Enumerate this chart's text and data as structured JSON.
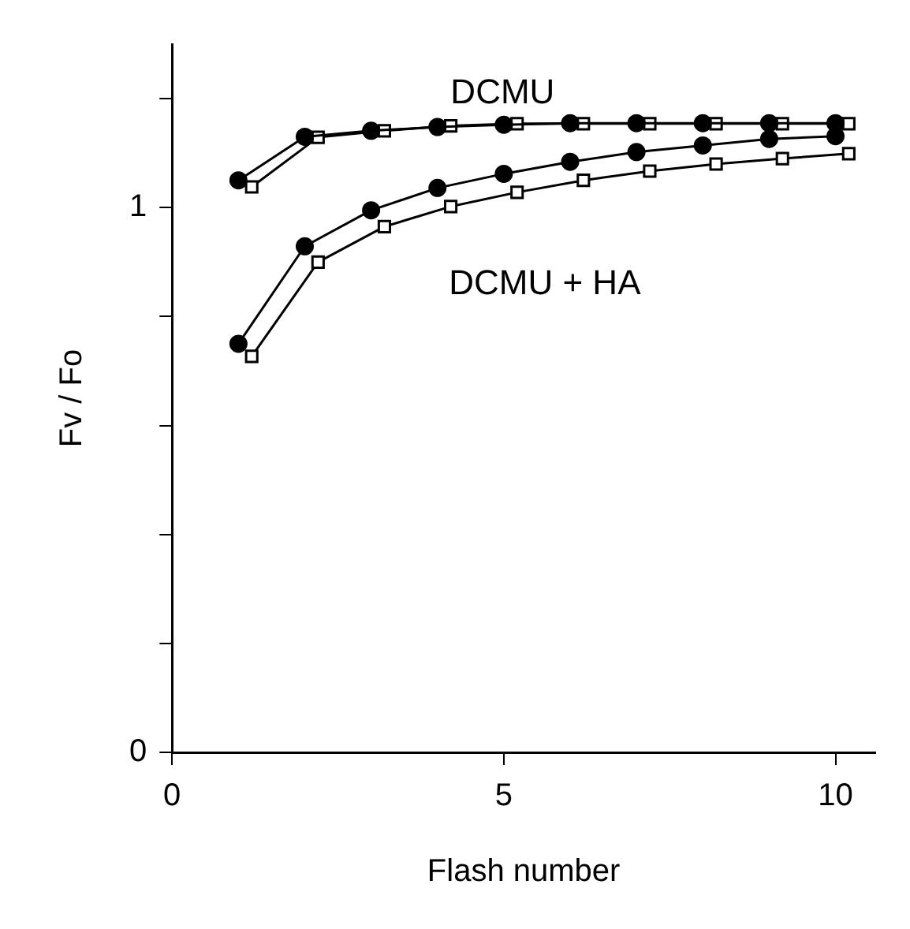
{
  "chart_data": {
    "type": "line",
    "xlabel": "Flash number",
    "ylabel": "Fv / Fo",
    "xlim": [
      0,
      10.6
    ],
    "xticks": [
      0,
      5,
      10
    ],
    "ylim": [
      0,
      1.3
    ],
    "yticks": [
      0,
      {
        "value": 0.2,
        "label": null
      },
      {
        "value": 0.4,
        "label": null
      },
      {
        "value": 0.6,
        "label": null
      },
      {
        "value": 0.8,
        "label": null
      },
      1,
      {
        "value": 1.2,
        "label": null
      }
    ],
    "grid": false,
    "legend": false,
    "line_style": "solid",
    "annotations": [
      "DCMU",
      "DCMU + HA"
    ],
    "series": [
      {
        "color": "#000000",
        "marker": "circle",
        "x": [
          1,
          2,
          3,
          4,
          5,
          6,
          7,
          8,
          9,
          10
        ],
        "values": [
          1.05,
          1.13,
          1.141,
          1.148,
          1.152,
          1.155,
          1.155,
          1.155,
          1.155,
          1.155
        ]
      },
      {
        "color": "#000000",
        "marker": "square",
        "x": [
          1.2,
          2.2,
          3.2,
          4.2,
          5.2,
          6.2,
          7.2,
          8.2,
          9.2,
          10.2
        ],
        "values": [
          1.038,
          1.129,
          1.141,
          1.15,
          1.154,
          1.154,
          1.154,
          1.154,
          1.154,
          1.154
        ]
      },
      {
        "color": "#000000",
        "marker": "circle",
        "x": [
          1,
          2,
          3,
          4,
          5,
          6,
          7,
          8,
          9,
          10
        ],
        "values": [
          0.75,
          0.929,
          0.995,
          1.036,
          1.062,
          1.084,
          1.102,
          1.114,
          1.126,
          1.131
        ]
      },
      {
        "color": "#000000",
        "marker": "square",
        "x": [
          1.2,
          2.2,
          3.2,
          4.2,
          5.2,
          6.2,
          7.2,
          8.2,
          9.2,
          10.2
        ],
        "values": [
          0.727,
          0.9,
          0.965,
          1.002,
          1.028,
          1.05,
          1.067,
          1.08,
          1.09,
          1.099
        ]
      }
    ]
  }
}
